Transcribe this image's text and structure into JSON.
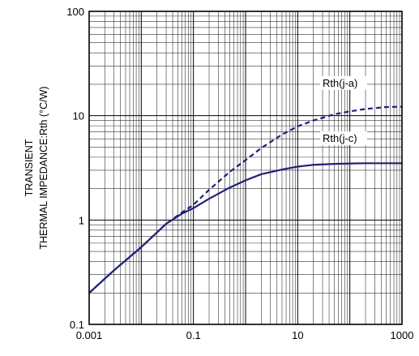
{
  "chart_data": {
    "type": "line",
    "xscale": "log",
    "yscale": "log",
    "xlim": [
      0.001,
      1000
    ],
    "ylim": [
      0.1,
      100
    ],
    "x_ticks": [
      "0.001",
      "0.1",
      "10",
      "1000"
    ],
    "y_ticks": [
      "0.1",
      "1",
      "10",
      "100"
    ],
    "xlabel": "",
    "ylabel": [
      "TRANSIENT",
      "THERMAL IMPEDANCE:Rth (°C/W)"
    ],
    "grid": true,
    "line_color": "#1f1f7a",
    "series": [
      {
        "name": "Rth(j-a)",
        "style": "dashed",
        "x": [
          0.001,
          0.003,
          0.01,
          0.03,
          0.06,
          0.1,
          0.2,
          0.5,
          1,
          2,
          5,
          10,
          20,
          50,
          100,
          200,
          500,
          1000
        ],
        "y": [
          0.2,
          0.33,
          0.55,
          0.92,
          1.18,
          1.4,
          1.95,
          2.9,
          3.75,
          4.9,
          6.6,
          7.9,
          9.0,
          10.3,
          11.0,
          11.6,
          12.1,
          12.2
        ]
      },
      {
        "name": "Rth(j-c)",
        "style": "solid",
        "x": [
          0.001,
          0.003,
          0.01,
          0.03,
          0.06,
          0.1,
          0.2,
          0.5,
          1,
          2,
          5,
          10,
          20,
          50,
          100,
          200,
          500,
          1000
        ],
        "y": [
          0.2,
          0.33,
          0.55,
          0.92,
          1.15,
          1.3,
          1.6,
          2.05,
          2.4,
          2.75,
          3.05,
          3.25,
          3.38,
          3.45,
          3.48,
          3.5,
          3.5,
          3.5
        ]
      }
    ]
  }
}
